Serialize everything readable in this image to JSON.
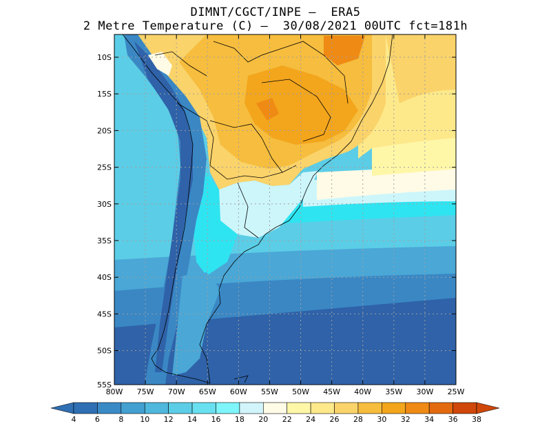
{
  "title": {
    "line1": "DIMNT/CGCT/INPE –  ERA5",
    "line2": "2 Metre Temperature (C) –  30/08/2021 00UTC fct=181h"
  },
  "map": {
    "lon_labels": [
      "80W",
      "75W",
      "70W",
      "65W",
      "60W",
      "55W",
      "50W",
      "45W",
      "40W",
      "35W",
      "30W",
      "25W"
    ],
    "lat_labels": [
      "10S",
      "15S",
      "20S",
      "25S",
      "30S",
      "35S",
      "40S",
      "45S",
      "50S",
      "55S"
    ]
  },
  "colorbar": {
    "labels": [
      "4",
      "6",
      "8",
      "10",
      "12",
      "14",
      "16",
      "18",
      "20",
      "22",
      "24",
      "26",
      "28",
      "30",
      "32",
      "34",
      "36",
      "38"
    ],
    "colors": [
      "#2f6fb3",
      "#3a8ac6",
      "#43a0d0",
      "#4fb8dc",
      "#5ccde6",
      "#68e0ef",
      "#7ef5fb",
      "#d2f5fb",
      "#fffbe6",
      "#fff7a8",
      "#fde98a",
      "#fad36a",
      "#f6bd3e",
      "#f3a51c",
      "#ef8a14",
      "#e36a0f",
      "#cf4709"
    ],
    "arrow_left": "#2f6fb3",
    "arrow_right": "#cf4709"
  },
  "palette": {
    "deep": "#2f62a8",
    "blue": "#3a87c4",
    "mid": "#4aa7d6",
    "light": "#5ccde6",
    "cyan": "#2fe4f1",
    "pale": "#cdf6fb",
    "cream": "#fffbe6",
    "yellow": "#fff7a8",
    "sand": "#fde98a",
    "amber": "#fad36a",
    "gold": "#f6bd3e",
    "orange": "#f3a51c",
    "rust": "#ef8a14"
  }
}
